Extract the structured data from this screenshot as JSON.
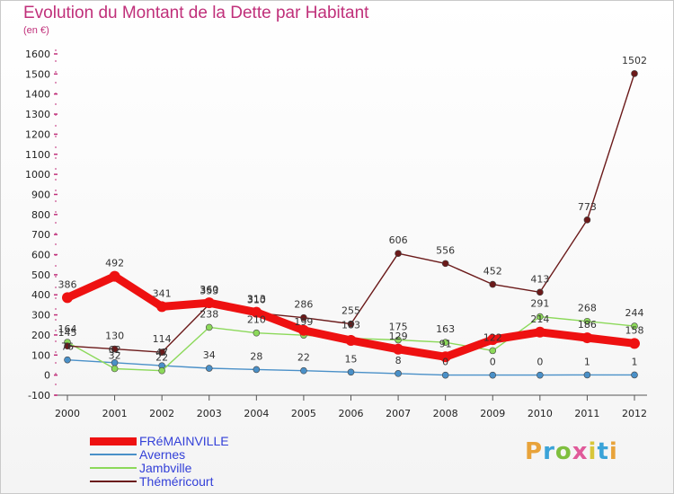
{
  "title": "Evolution du Montant de la Dette par Habitant",
  "subtitle": "(en €)",
  "brand": {
    "text": "Proxiti",
    "colors": [
      "#e8a33a",
      "#3aa3d8",
      "#7fbf3f",
      "#e05a9a",
      "#d8c63a",
      "#3aa3d8",
      "#e8a33a"
    ]
  },
  "legend": [
    {
      "name": "FRéMAINVILLE",
      "color": "#ee1111",
      "weight": 9
    },
    {
      "name": "Avernes",
      "color": "#4a90c8",
      "weight": 1.5
    },
    {
      "name": "Jambville",
      "color": "#8cd95a",
      "weight": 1.5
    },
    {
      "name": "Théméricourt",
      "color": "#6b1a1a",
      "weight": 1.5
    }
  ],
  "chart_data": {
    "type": "line",
    "title": "Evolution du Montant de la Dette par Habitant",
    "subtitle": "(en €)",
    "x": [
      "2000",
      "2001",
      "2002",
      "2003",
      "2004",
      "2005",
      "2006",
      "2007",
      "2008",
      "2009",
      "2010",
      "2011",
      "2012"
    ],
    "ylim": [
      -100,
      1600
    ],
    "yticks": [
      -100,
      0,
      100,
      200,
      300,
      400,
      500,
      600,
      700,
      800,
      900,
      1000,
      1100,
      1200,
      1300,
      1400,
      1500,
      1600
    ],
    "grid": false,
    "legend_position": "bottom-left",
    "series": [
      {
        "name": "FRéMAINVILLE",
        "color": "#ee1111",
        "values": [
          386,
          492,
          341,
          360,
          313,
          223,
          173,
          129,
          91,
          177,
          214,
          186,
          158
        ],
        "labels": [
          "386",
          "492",
          "341",
          "360",
          "313",
          "",
          "",
          "129",
          "91",
          "",
          "214",
          "186",
          "158"
        ]
      },
      {
        "name": "Avernes",
        "color": "#4a90c8",
        "values": [
          76,
          62,
          47,
          34,
          28,
          22,
          15,
          8,
          0,
          0,
          0,
          1,
          1
        ],
        "labels": [
          "76",
          "62",
          "47",
          "34",
          "28",
          "22",
          "15",
          "8",
          "0",
          "0",
          "0",
          "1",
          "1"
        ]
      },
      {
        "name": "Jambville",
        "color": "#8cd95a",
        "values": [
          164,
          32,
          22,
          238,
          210,
          199,
          183,
          175,
          163,
          122,
          291,
          268,
          244
        ],
        "labels": [
          "164",
          "32",
          "22",
          "238",
          "210",
          "199",
          "183",
          "175",
          "163",
          "122",
          "291",
          "268",
          "244"
        ]
      },
      {
        "name": "Théméricourt",
        "color": "#6b1a1a",
        "values": [
          145,
          130,
          114,
          353,
          310,
          286,
          255,
          606,
          556,
          452,
          413,
          773,
          1502
        ],
        "labels": [
          "145",
          "130",
          "114",
          "353",
          "310",
          "286",
          "255",
          "606",
          "556",
          "452",
          "413",
          "773",
          "1502"
        ]
      }
    ]
  }
}
